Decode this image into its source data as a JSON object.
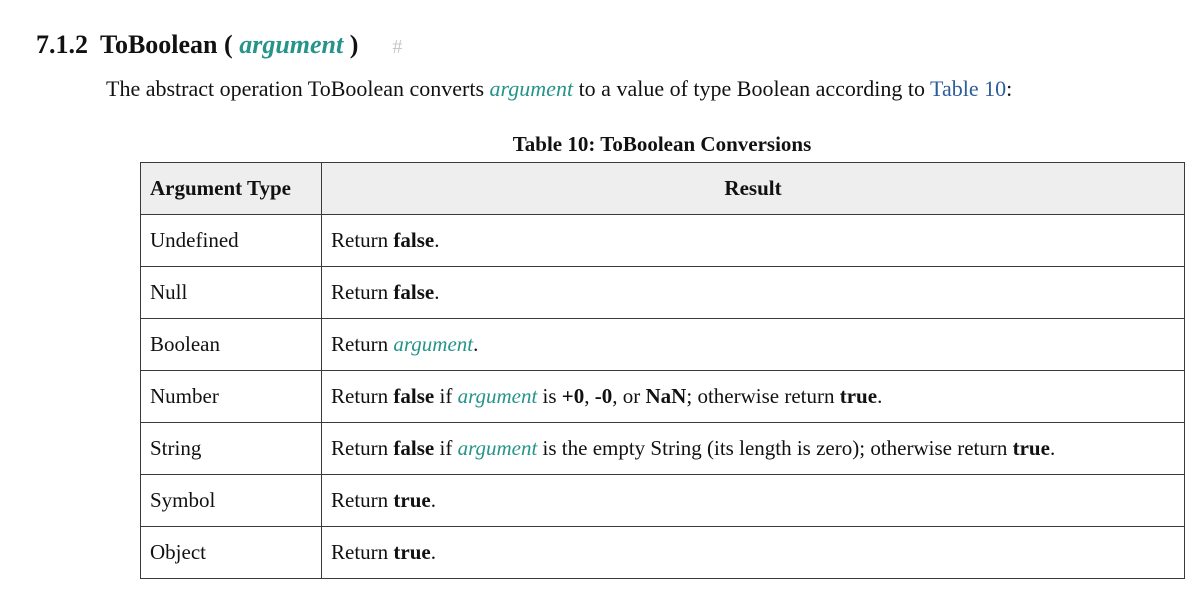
{
  "heading": {
    "number": "7.1.2",
    "name": "ToBoolean",
    "open_paren": "(",
    "param": "argument",
    "close_paren": ")",
    "anchor": "#"
  },
  "intro": {
    "before": "The abstract operation ToBoolean converts ",
    "arg": "argument",
    "middle": " to a value of type Boolean according to ",
    "link": "Table 10",
    "after": ":"
  },
  "table": {
    "caption": "Table 10: ToBoolean Conversions",
    "headers": [
      "Argument Type",
      "Result"
    ],
    "rows": [
      {
        "type": "Undefined",
        "result": [
          {
            "t": "text",
            "v": "Return "
          },
          {
            "t": "bold",
            "v": "false"
          },
          {
            "t": "text",
            "v": "."
          }
        ]
      },
      {
        "type": "Null",
        "result": [
          {
            "t": "text",
            "v": "Return "
          },
          {
            "t": "bold",
            "v": "false"
          },
          {
            "t": "text",
            "v": "."
          }
        ]
      },
      {
        "type": "Boolean",
        "result": [
          {
            "t": "text",
            "v": "Return "
          },
          {
            "t": "var",
            "v": "argument"
          },
          {
            "t": "text",
            "v": "."
          }
        ]
      },
      {
        "type": "Number",
        "result": [
          {
            "t": "text",
            "v": "Return "
          },
          {
            "t": "bold",
            "v": "false"
          },
          {
            "t": "text",
            "v": " if "
          },
          {
            "t": "var",
            "v": "argument"
          },
          {
            "t": "text",
            "v": " is "
          },
          {
            "t": "bold",
            "v": "+0"
          },
          {
            "t": "text",
            "v": ", "
          },
          {
            "t": "bold",
            "v": "-0"
          },
          {
            "t": "text",
            "v": ", or "
          },
          {
            "t": "bold",
            "v": "NaN"
          },
          {
            "t": "text",
            "v": "; otherwise return "
          },
          {
            "t": "bold",
            "v": "true"
          },
          {
            "t": "text",
            "v": "."
          }
        ]
      },
      {
        "type": "String",
        "result": [
          {
            "t": "text",
            "v": "Return "
          },
          {
            "t": "bold",
            "v": "false"
          },
          {
            "t": "text",
            "v": " if "
          },
          {
            "t": "var",
            "v": "argument"
          },
          {
            "t": "text",
            "v": " is the empty String (its length is zero); otherwise return "
          },
          {
            "t": "bold",
            "v": "true"
          },
          {
            "t": "text",
            "v": "."
          }
        ]
      },
      {
        "type": "Symbol",
        "result": [
          {
            "t": "text",
            "v": "Return "
          },
          {
            "t": "bold",
            "v": "true"
          },
          {
            "t": "text",
            "v": "."
          }
        ]
      },
      {
        "type": "Object",
        "result": [
          {
            "t": "text",
            "v": "Return "
          },
          {
            "t": "bold",
            "v": "true"
          },
          {
            "t": "text",
            "v": "."
          }
        ]
      }
    ]
  },
  "colors": {
    "variable": "#26948a",
    "link": "#2c5d9a",
    "header_bg": "#eeeeee",
    "anchor": "#c8c8c8"
  }
}
